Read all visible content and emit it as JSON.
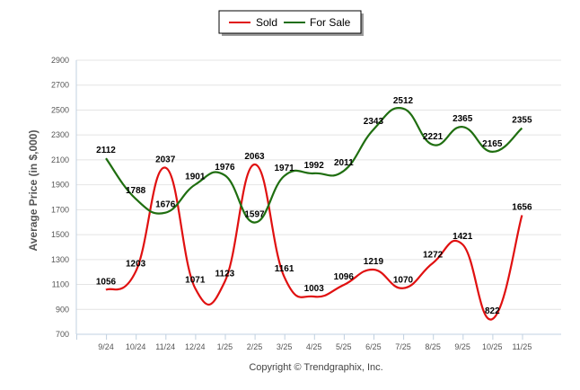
{
  "chart_data": {
    "type": "line",
    "ylabel": "Average Price (in $,000)",
    "xlabel": "",
    "credit": "Copyright © Trendgraphix, Inc.",
    "legend_placement": "top-center",
    "ylim": [
      700,
      2900
    ],
    "yticks": [
      700,
      900,
      1100,
      1300,
      1500,
      1700,
      1900,
      2100,
      2300,
      2500,
      2700,
      2900
    ],
    "categories": [
      "9/24",
      "10/24",
      "11/24",
      "12/24",
      "1/25",
      "2/25",
      "3/25",
      "4/25",
      "5/25",
      "6/25",
      "7/25",
      "8/25",
      "9/25",
      "10/25",
      "11/25"
    ],
    "series": [
      {
        "name": "Sold",
        "color": "#e01010",
        "values": [
          1056,
          1203,
          2037,
          1071,
          1123,
          2063,
          1161,
          1003,
          1096,
          1219,
          1070,
          1272,
          1421,
          822,
          1656
        ],
        "labels": [
          "1056",
          "1203",
          "2037",
          "1071",
          "1123",
          "2063",
          "1161",
          "1003",
          "1096",
          "1219",
          "1070",
          "1272",
          "1421",
          "822",
          "1656"
        ]
      },
      {
        "name": "For Sale",
        "color": "#1f6e10",
        "values": [
          2112,
          1788,
          1676,
          1901,
          1976,
          1597,
          1971,
          1992,
          2011,
          2343,
          2512,
          2221,
          2365,
          2165,
          2355
        ],
        "labels": [
          "2112",
          "1788",
          "1676",
          "1901",
          "1976",
          "1597",
          "1971",
          "1992",
          "2011",
          "2343",
          "2512",
          "2221",
          "2365",
          "2165",
          "2355"
        ]
      }
    ]
  }
}
